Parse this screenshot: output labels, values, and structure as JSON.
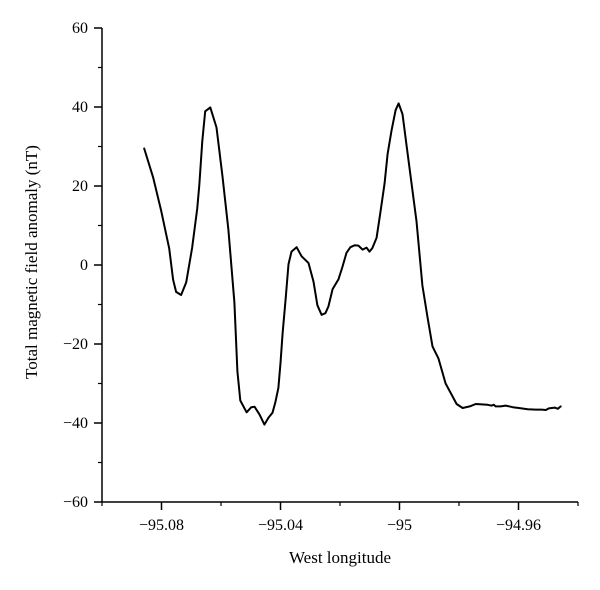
{
  "chart_data": {
    "type": "line",
    "title": "",
    "xlabel": "West longitude",
    "ylabel": "Total magnetic field anomaly (nT)",
    "xlim": [
      -95.1,
      -94.94
    ],
    "ylim": [
      -60,
      60
    ],
    "x_ticks": [
      -95.08,
      -95.04,
      -95,
      -94.96
    ],
    "x_tick_labels": [
      "−95.08",
      "−95.04",
      "−95",
      "−94.96"
    ],
    "y_ticks": [
      -60,
      -40,
      -20,
      0,
      20,
      40,
      60
    ],
    "y_tick_labels": [
      "−60",
      "−40",
      "−20",
      "0",
      "20",
      "40",
      "60"
    ],
    "grid": false,
    "legend": "none",
    "line_color": "#000000",
    "series": [
      {
        "x": [
          -95.0858,
          -95.0828,
          -95.0801,
          -95.0774,
          -95.0761,
          -95.0751,
          -95.0734,
          -95.0717,
          -95.0697,
          -95.068,
          -95.0673,
          -95.0663,
          -95.0653,
          -95.0636,
          -95.0615,
          -95.0595,
          -95.0575,
          -95.0555,
          -95.0545,
          -95.0535,
          -95.0514,
          -95.0498,
          -95.0487,
          -95.0471,
          -95.0454,
          -95.044,
          -95.0427,
          -95.0417,
          -95.0407,
          -95.04,
          -95.0393,
          -95.0383,
          -95.0373,
          -95.0363,
          -95.0346,
          -95.0329,
          -95.0306,
          -95.0289,
          -95.0276,
          -95.0262,
          -95.0249,
          -95.0239,
          -95.0225,
          -95.0205,
          -95.0192,
          -95.0178,
          -95.0165,
          -95.0151,
          -95.0138,
          -95.0124,
          -95.0111,
          -95.0101,
          -95.0091,
          -95.0077,
          -95.0064,
          -95.005,
          -95.004,
          -95.0027,
          -95.0013,
          -95.0003,
          -94.999,
          -94.9976,
          -94.996,
          -94.9943,
          -94.9923,
          -94.9906,
          -94.9889,
          -94.9869,
          -94.9845,
          -94.9825,
          -94.9808,
          -94.9788,
          -94.9764,
          -94.9744,
          -94.9724,
          -94.9704,
          -94.969,
          -94.9683,
          -94.9677,
          -94.966,
          -94.9643,
          -94.9619,
          -94.9599,
          -94.9569,
          -94.9542,
          -94.9522,
          -94.9508,
          -94.9498,
          -94.9488,
          -94.9478,
          -94.9468,
          -94.9458
        ],
        "y": [
          29.5,
          22.1,
          13.7,
          4.2,
          -3.7,
          -6.8,
          -7.6,
          -4.4,
          4.3,
          14.2,
          20.2,
          31.4,
          38.9,
          39.9,
          34.8,
          22.4,
          8.9,
          -9.5,
          -26.9,
          -34.3,
          -37.3,
          -36.0,
          -35.9,
          -37.8,
          -40.4,
          -38.6,
          -37.4,
          -34.7,
          -31.1,
          -24.8,
          -17.3,
          -8.7,
          0.2,
          3.4,
          4.5,
          2.2,
          0.5,
          -4.2,
          -10.2,
          -12.6,
          -12.2,
          -10.5,
          -6.1,
          -3.6,
          -0.5,
          3.1,
          4.5,
          5.0,
          4.9,
          3.9,
          4.4,
          3.4,
          4.3,
          6.9,
          13.5,
          20.7,
          28.1,
          34.0,
          39.2,
          40.9,
          38.2,
          30.2,
          20.9,
          11.1,
          -5.2,
          -13.2,
          -20.6,
          -23.7,
          -30.0,
          -32.8,
          -35.2,
          -36.2,
          -35.8,
          -35.2,
          -35.3,
          -35.4,
          -35.6,
          -35.4,
          -35.8,
          -35.8,
          -35.6,
          -36.0,
          -36.2,
          -36.5,
          -36.6,
          -36.6,
          -36.7,
          -36.3,
          -36.2,
          -36.1,
          -36.4,
          -35.8
        ]
      }
    ]
  }
}
